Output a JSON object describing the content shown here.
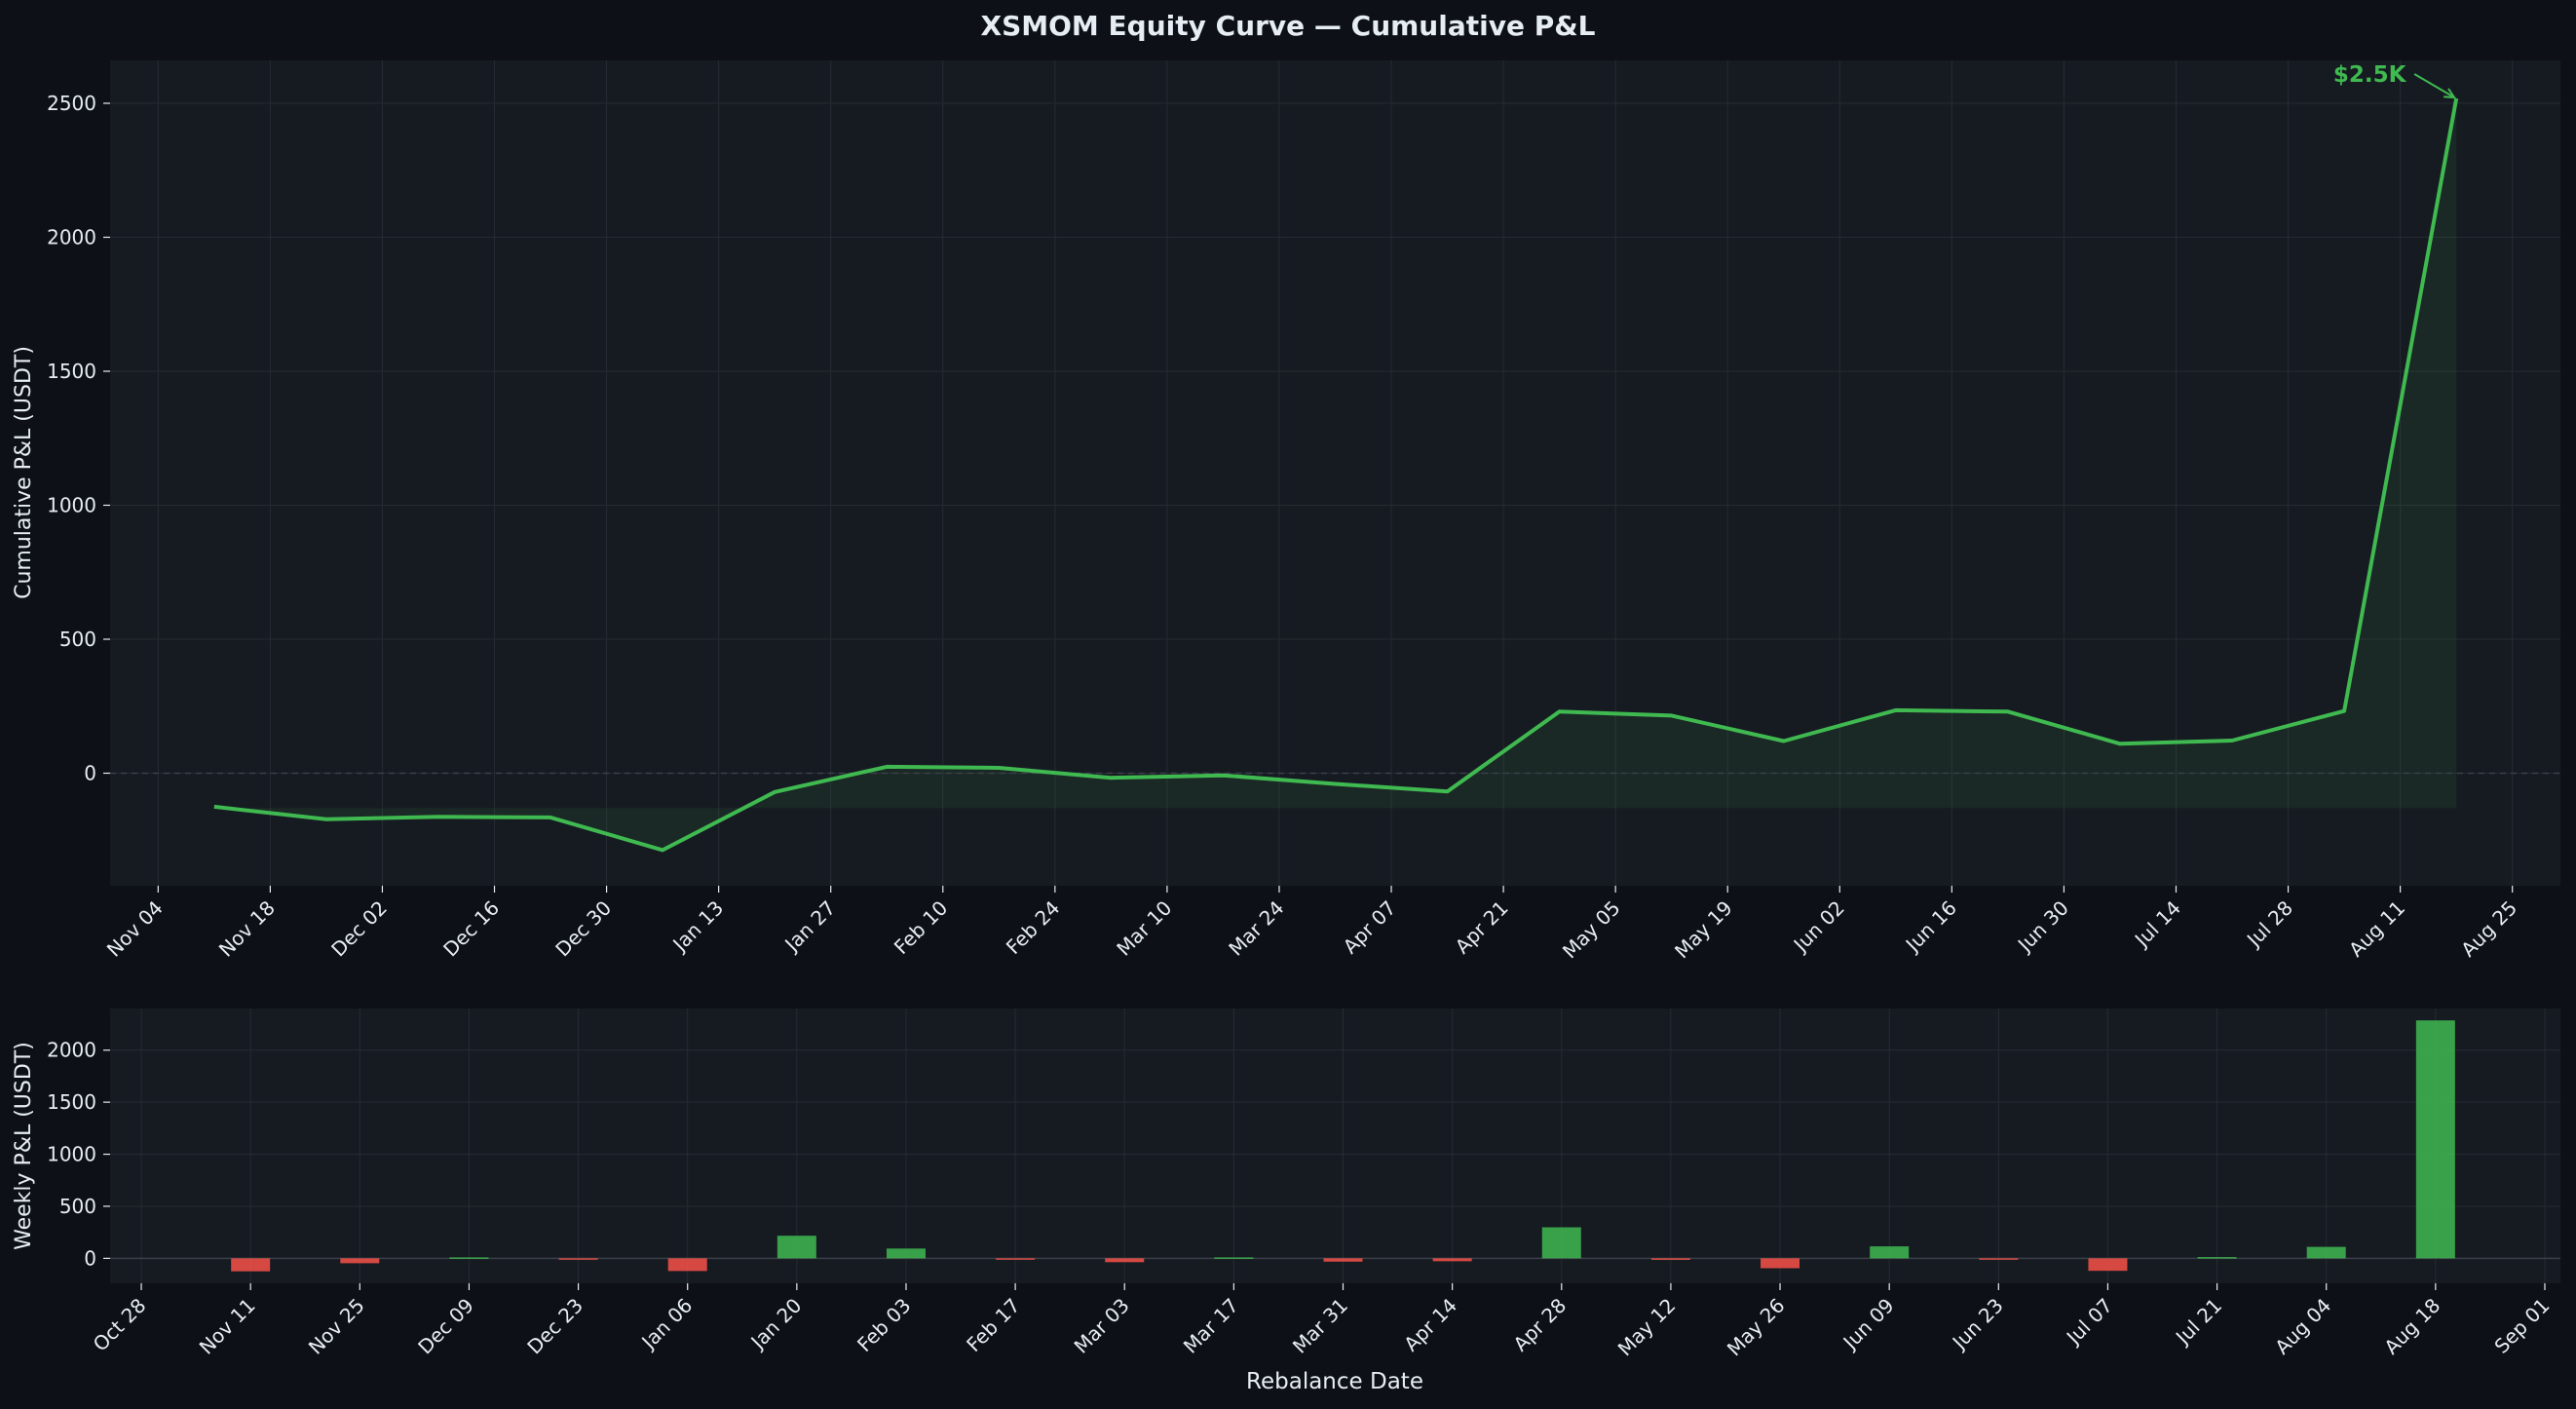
{
  "figure": {
    "title": "XSMOM Equity Curve — Cumulative P&L",
    "colors": {
      "background": "#0d1117",
      "panel": "#161b22",
      "grid": "#262b33",
      "text": "#e6edf3",
      "positive": "#3fb950",
      "negative": "#f85149"
    }
  },
  "chart_data": [
    {
      "type": "line",
      "title": "XSMOM Equity Curve — Cumulative P&L",
      "xlabel": "",
      "ylabel": "Cumulative P&L (USDT)",
      "xlim": [
        "2024-10-29",
        "2025-08-31"
      ],
      "ylim": [
        -420,
        2660
      ],
      "yticks": [
        0,
        500,
        1000,
        1500,
        2000,
        2500
      ],
      "xticks": [
        {
          "date": "2024-11-04",
          "label": "Nov 04"
        },
        {
          "date": "2024-11-18",
          "label": "Nov 18"
        },
        {
          "date": "2024-12-02",
          "label": "Dec 02"
        },
        {
          "date": "2024-12-16",
          "label": "Dec 16"
        },
        {
          "date": "2024-12-30",
          "label": "Dec 30"
        },
        {
          "date": "2025-01-13",
          "label": "Jan 13"
        },
        {
          "date": "2025-01-27",
          "label": "Jan 27"
        },
        {
          "date": "2025-02-10",
          "label": "Feb 10"
        },
        {
          "date": "2025-02-24",
          "label": "Feb 24"
        },
        {
          "date": "2025-03-10",
          "label": "Mar 10"
        },
        {
          "date": "2025-03-24",
          "label": "Mar 24"
        },
        {
          "date": "2025-04-07",
          "label": "Apr 07"
        },
        {
          "date": "2025-04-21",
          "label": "Apr 21"
        },
        {
          "date": "2025-05-05",
          "label": "May 05"
        },
        {
          "date": "2025-05-19",
          "label": "May 19"
        },
        {
          "date": "2025-06-02",
          "label": "Jun 02"
        },
        {
          "date": "2025-06-16",
          "label": "Jun 16"
        },
        {
          "date": "2025-06-30",
          "label": "Jun 30"
        },
        {
          "date": "2025-07-14",
          "label": "Jul 14"
        },
        {
          "date": "2025-07-28",
          "label": "Jul 28"
        },
        {
          "date": "2025-08-11",
          "label": "Aug 11"
        },
        {
          "date": "2025-08-25",
          "label": "Aug 25"
        }
      ],
      "series": [
        {
          "color": "#3fb950",
          "x": [
            "2024-11-11",
            "2024-11-25",
            "2024-12-09",
            "2024-12-23",
            "2025-01-06",
            "2025-01-20",
            "2025-02-03",
            "2025-02-17",
            "2025-03-03",
            "2025-03-17",
            "2025-03-31",
            "2025-04-14",
            "2025-04-28",
            "2025-05-12",
            "2025-05-26",
            "2025-06-09",
            "2025-06-23",
            "2025-07-07",
            "2025-07-21",
            "2025-08-04",
            "2025-08-18"
          ],
          "y": [
            -125,
            -172,
            -163,
            -165,
            -287,
            -70,
            24,
            20,
            -17,
            -8,
            -40,
            -68,
            230,
            215,
            120,
            235,
            230,
            110,
            122,
            232,
            2518
          ]
        }
      ],
      "fill_baseline": -130,
      "legend": "none",
      "grid": true,
      "annotation": {
        "text": "$2.5K",
        "x": "2025-08-18",
        "y": 2518,
        "color": "#3fb950"
      }
    },
    {
      "type": "bar",
      "xlabel": "Rebalance Date",
      "ylabel": "Weekly P&L (USDT)",
      "xlim": [
        "2024-10-24",
        "2025-09-03"
      ],
      "ylim": [
        -240,
        2400
      ],
      "yticks": [
        0,
        500,
        1000,
        1500,
        2000
      ],
      "xticks": [
        {
          "date": "2024-10-28",
          "label": "Oct 28"
        },
        {
          "date": "2024-11-11",
          "label": "Nov 11"
        },
        {
          "date": "2024-11-25",
          "label": "Nov 25"
        },
        {
          "date": "2024-12-09",
          "label": "Dec 09"
        },
        {
          "date": "2024-12-23",
          "label": "Dec 23"
        },
        {
          "date": "2025-01-06",
          "label": "Jan 06"
        },
        {
          "date": "2025-01-20",
          "label": "Jan 20"
        },
        {
          "date": "2025-02-03",
          "label": "Feb 03"
        },
        {
          "date": "2025-02-17",
          "label": "Feb 17"
        },
        {
          "date": "2025-03-03",
          "label": "Mar 03"
        },
        {
          "date": "2025-03-17",
          "label": "Mar 17"
        },
        {
          "date": "2025-03-31",
          "label": "Mar 31"
        },
        {
          "date": "2025-04-14",
          "label": "Apr 14"
        },
        {
          "date": "2025-04-28",
          "label": "Apr 28"
        },
        {
          "date": "2025-05-12",
          "label": "May 12"
        },
        {
          "date": "2025-05-26",
          "label": "May 26"
        },
        {
          "date": "2025-06-09",
          "label": "Jun 09"
        },
        {
          "date": "2025-06-23",
          "label": "Jun 23"
        },
        {
          "date": "2025-07-07",
          "label": "Jul 07"
        },
        {
          "date": "2025-07-21",
          "label": "Jul 21"
        },
        {
          "date": "2025-08-04",
          "label": "Aug 04"
        },
        {
          "date": "2025-08-18",
          "label": "Aug 18"
        },
        {
          "date": "2025-09-01",
          "label": "Sep 01"
        }
      ],
      "bars": {
        "x": [
          "2024-11-11",
          "2024-11-25",
          "2024-12-09",
          "2024-12-23",
          "2025-01-06",
          "2025-01-20",
          "2025-02-03",
          "2025-02-17",
          "2025-03-03",
          "2025-03-17",
          "2025-03-31",
          "2025-04-14",
          "2025-04-28",
          "2025-05-12",
          "2025-05-26",
          "2025-06-09",
          "2025-06-23",
          "2025-07-07",
          "2025-07-21",
          "2025-08-04",
          "2025-08-18"
        ],
        "values": [
          -125,
          -47,
          9,
          -2,
          -122,
          217,
          94,
          -4,
          -37,
          9,
          -32,
          -28,
          298,
          -15,
          -95,
          115,
          -5,
          -120,
          12,
          110,
          2286
        ],
        "positive_color": "#3fb950",
        "negative_color": "#f85149"
      },
      "legend": "none",
      "grid": true
    }
  ]
}
